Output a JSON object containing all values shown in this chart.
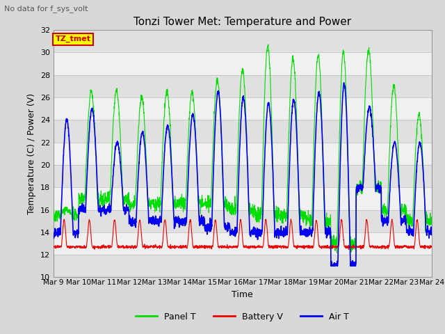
{
  "title": "Tonzi Tower Met: Temperature and Power",
  "subtitle": "No data for f_sys_volt",
  "xlabel": "Time",
  "ylabel": "Temperature (C) / Power (V)",
  "ylim": [
    10,
    32
  ],
  "yticks": [
    10,
    12,
    14,
    16,
    18,
    20,
    22,
    24,
    26,
    28,
    30,
    32
  ],
  "xtick_labels": [
    "Mar 9",
    "Mar 10",
    "Mar 11",
    "Mar 12",
    "Mar 13",
    "Mar 14",
    "Mar 15",
    "Mar 16",
    "Mar 17",
    "Mar 18",
    "Mar 19",
    "Mar 20",
    "Mar 21",
    "Mar 22",
    "Mar 23",
    "Mar 24"
  ],
  "n_days": 15,
  "points_per_day": 144,
  "panel_color": "#00dd00",
  "battery_color": "#ee0000",
  "air_color": "#0000ee",
  "bg_color": "#d8d8d8",
  "plot_bg_light": "#f0f0f0",
  "plot_bg_dark": "#e0e0e0",
  "grid_color": "#bbbbbb",
  "legend_items": [
    "Panel T",
    "Battery V",
    "Air T"
  ],
  "legend_colors": [
    "#00dd00",
    "#ee0000",
    "#0000ee"
  ],
  "tz_tmet_label": "TZ_tmet",
  "tz_tmet_color": "#cc0000",
  "tz_tmet_bg": "#ffff00",
  "panel_peaks": [
    16,
    26.5,
    26.7,
    26,
    26.5,
    26.5,
    27.5,
    28.5,
    30.5,
    29.5,
    29.8,
    30.1,
    30.2,
    27,
    24.5
  ],
  "air_peaks": [
    24,
    25,
    22,
    22.9,
    23.5,
    24.5,
    26.5,
    26,
    25.5,
    25.8,
    26.5,
    27.2,
    25.1,
    22,
    22
  ],
  "panel_nights": [
    15.5,
    17,
    17,
    16.5,
    16.5,
    16.5,
    16.5,
    16,
    15.5,
    15.5,
    15,
    13,
    18,
    16,
    15
  ],
  "air_nights": [
    14,
    16,
    16,
    15,
    15,
    15,
    14.5,
    14,
    14,
    14,
    14,
    11,
    18,
    15,
    14
  ]
}
